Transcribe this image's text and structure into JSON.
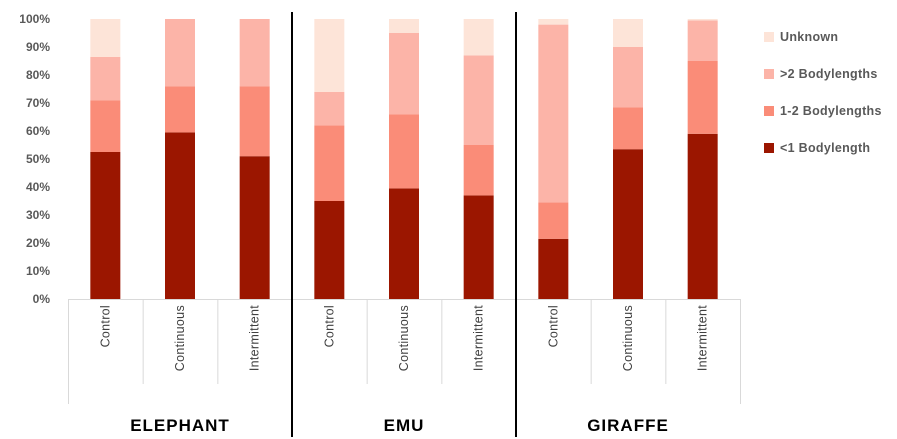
{
  "chart_data": {
    "type": "bar",
    "stacked": true,
    "normalized": true,
    "groups": [
      {
        "name": "ELEPHANT",
        "categories": [
          "Control",
          "Continuous",
          "Intermittent"
        ]
      },
      {
        "name": "EMU",
        "categories": [
          "Control",
          "Continuous",
          "Intermittent"
        ]
      },
      {
        "name": "GIRAFFE",
        "categories": [
          "Control",
          "Continuous",
          "Intermittent"
        ]
      }
    ],
    "series": [
      {
        "name": "<1 Bodylength",
        "color": "#9B1600",
        "values": [
          52.5,
          59.5,
          51,
          35,
          39.5,
          37,
          21.5,
          53.5,
          59
        ]
      },
      {
        "name": "1-2 Bodylengths",
        "color": "#FA8C78",
        "values": [
          18.5,
          16.5,
          25,
          27,
          26.5,
          18,
          13,
          15,
          26
        ]
      },
      {
        "name": ">2 Bodylengths",
        "color": "#FCB4A8",
        "values": [
          15.5,
          24,
          24,
          12,
          29,
          32,
          63.5,
          21.5,
          14.5
        ]
      },
      {
        "name": "Unknown",
        "color": "#FDE4D8",
        "values": [
          13.5,
          0,
          0,
          26,
          5,
          13,
          2,
          10,
          0.5
        ]
      }
    ],
    "ylim": [
      0,
      100
    ],
    "yticks": [
      "0%",
      "10%",
      "20%",
      "30%",
      "40%",
      "50%",
      "60%",
      "70%",
      "80%",
      "90%",
      "100%"
    ],
    "legend": {
      "position": "right",
      "order": [
        "Unknown",
        ">2 Bodylengths",
        "1-2 Bodylengths",
        "<1 Bodylength"
      ]
    },
    "grid": false,
    "group_separators": true
  }
}
